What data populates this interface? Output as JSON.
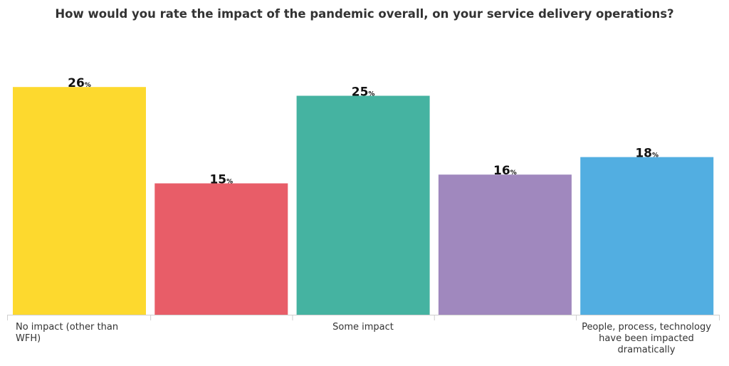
{
  "chart_data": {
    "type": "bar",
    "title": "How would you rate the impact of the pandemic overall, on your service delivery operations?",
    "xlabel": "",
    "ylabel": "",
    "ylim": [
      0,
      28
    ],
    "grid": false,
    "legend": "none",
    "value_suffix": "%",
    "categories": [
      "No impact (other than WFH)",
      "",
      "Some impact",
      "",
      "People, process, technology have been impacted dramatically"
    ],
    "values": [
      26,
      15,
      25,
      16,
      18
    ],
    "colors": [
      "#FDD92E",
      "#E85D68",
      "#45B3A1",
      "#A088BE",
      "#52AEE1"
    ]
  }
}
